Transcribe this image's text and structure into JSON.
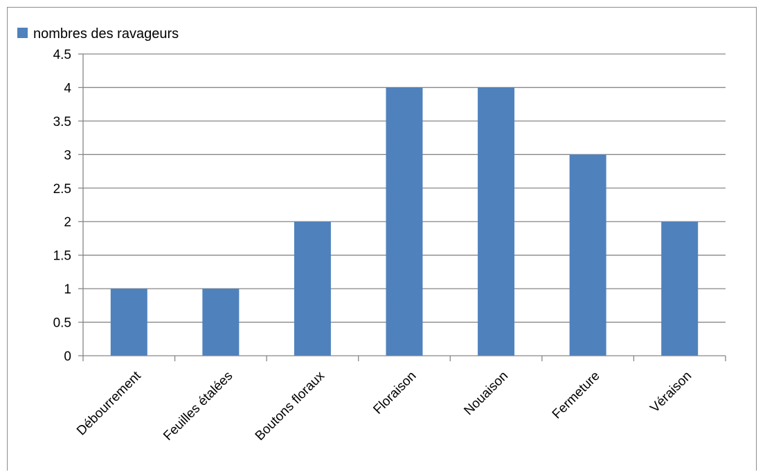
{
  "chart_data": {
    "type": "bar",
    "categories": [
      "Débourrement",
      "Feuilles étalées",
      "Boutons floraux",
      "Floraison",
      "Nouaison",
      "Fermeture",
      "Véraison"
    ],
    "series": [
      {
        "name": "nombres des ravageurs",
        "values": [
          1,
          1,
          2,
          4,
          4,
          3,
          2
        ],
        "color": "#4f81bd"
      }
    ],
    "ylim": [
      0,
      4.5
    ],
    "yticks": [
      0,
      0.5,
      1,
      1.5,
      2,
      2.5,
      3,
      3.5,
      4,
      4.5
    ],
    "ytick_labels": [
      "0",
      "0.5",
      "1",
      "1.5",
      "2",
      "2.5",
      "3",
      "3.5",
      "4",
      "4.5"
    ],
    "grid": true,
    "legend_position": "top-left",
    "gridline_color": "#868686"
  }
}
